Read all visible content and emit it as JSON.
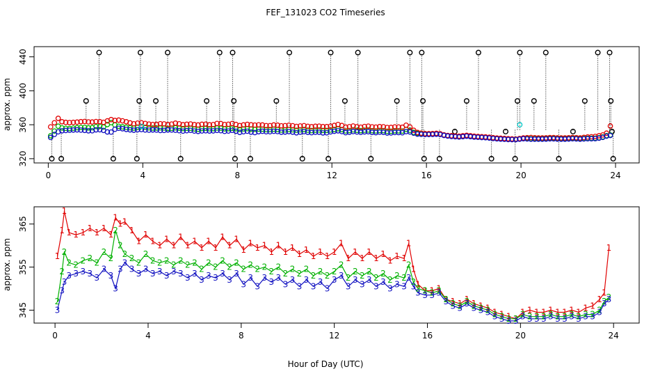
{
  "chart_data": [
    {
      "type": "scatter",
      "title": "FEF_131023  CO2 Timeseries",
      "xlabel": "",
      "ylabel": "approx. ppm",
      "xlim": [
        -0.6,
        25
      ],
      "ylim": [
        315,
        452
      ],
      "x_ticks": [
        0,
        4,
        8,
        12,
        16,
        20,
        24
      ],
      "y_ticks": [
        320,
        360,
        400,
        440
      ],
      "grid": false,
      "marker": "open circle",
      "colors": {
        "1": "#e00000",
        "2": "#00b000",
        "3": "#1010c0",
        "cal": "#00c8c8",
        "spike": "#000000"
      },
      "spikes": [
        {
          "x": 0.15,
          "y": 320
        },
        {
          "x": 0.55,
          "y": 320
        },
        {
          "x": 1.6,
          "y": 388
        },
        {
          "x": 2.15,
          "y": 445
        },
        {
          "x": 2.75,
          "y": 320
        },
        {
          "x": 3.75,
          "y": 320
        },
        {
          "x": 3.85,
          "y": 388
        },
        {
          "x": 3.9,
          "y": 445
        },
        {
          "x": 4.55,
          "y": 388
        },
        {
          "x": 5.05,
          "y": 445
        },
        {
          "x": 5.6,
          "y": 320
        },
        {
          "x": 6.7,
          "y": 388
        },
        {
          "x": 7.25,
          "y": 445
        },
        {
          "x": 7.8,
          "y": 445
        },
        {
          "x": 7.85,
          "y": 388
        },
        {
          "x": 7.9,
          "y": 320
        },
        {
          "x": 8.55,
          "y": 320
        },
        {
          "x": 9.65,
          "y": 388
        },
        {
          "x": 10.2,
          "y": 445
        },
        {
          "x": 10.75,
          "y": 320
        },
        {
          "x": 11.85,
          "y": 320
        },
        {
          "x": 11.95,
          "y": 445
        },
        {
          "x": 12.55,
          "y": 388
        },
        {
          "x": 13.1,
          "y": 445
        },
        {
          "x": 13.65,
          "y": 320
        },
        {
          "x": 14.75,
          "y": 388
        },
        {
          "x": 15.3,
          "y": 445
        },
        {
          "x": 15.8,
          "y": 445
        },
        {
          "x": 15.85,
          "y": 388
        },
        {
          "x": 15.9,
          "y": 320
        },
        {
          "x": 16.55,
          "y": 320
        },
        {
          "x": 17.2,
          "y": 352
        },
        {
          "x": 17.7,
          "y": 388
        },
        {
          "x": 18.2,
          "y": 445
        },
        {
          "x": 18.75,
          "y": 320
        },
        {
          "x": 19.35,
          "y": 352
        },
        {
          "x": 19.75,
          "y": 320
        },
        {
          "x": 19.85,
          "y": 388
        },
        {
          "x": 19.95,
          "y": 445
        },
        {
          "x": 20.55,
          "y": 388
        },
        {
          "x": 21.05,
          "y": 445
        },
        {
          "x": 21.6,
          "y": 320
        },
        {
          "x": 22.2,
          "y": 352
        },
        {
          "x": 22.7,
          "y": 388
        },
        {
          "x": 23.25,
          "y": 445
        },
        {
          "x": 23.75,
          "y": 445
        },
        {
          "x": 23.8,
          "y": 388
        },
        {
          "x": 23.9,
          "y": 320
        },
        {
          "x": 23.85,
          "y": 352
        }
      ]
    },
    {
      "type": "line",
      "title": "",
      "xlabel": "Hour of Day (UTC)",
      "ylabel": "approx. ppm",
      "xlim": [
        -0.9,
        25.1
      ],
      "ylim": [
        342,
        369
      ],
      "x_ticks": [
        0,
        4,
        8,
        12,
        16,
        20,
        24
      ],
      "y_ticks": [
        345,
        355,
        365
      ],
      "grid": false,
      "point_labels": "series name drawn as the marker",
      "series": [
        {
          "name": "1",
          "color": "#e00000",
          "x": [
            0.1,
            0.3,
            0.4,
            0.6,
            0.9,
            1.2,
            1.5,
            1.8,
            2.1,
            2.4,
            2.6,
            2.8,
            3.0,
            3.3,
            3.6,
            3.9,
            4.2,
            4.5,
            4.8,
            5.1,
            5.4,
            5.7,
            6.0,
            6.3,
            6.6,
            6.9,
            7.2,
            7.5,
            7.8,
            8.1,
            8.4,
            8.7,
            9.0,
            9.3,
            9.6,
            9.9,
            10.2,
            10.5,
            10.8,
            11.1,
            11.4,
            11.7,
            12.0,
            12.3,
            12.6,
            12.9,
            13.2,
            13.5,
            13.8,
            14.1,
            14.4,
            14.7,
            15.0,
            15.2,
            15.4,
            15.6,
            15.9,
            16.2,
            16.5,
            16.8,
            17.1,
            17.4,
            17.7,
            18.0,
            18.3,
            18.6,
            18.9,
            19.2,
            19.5,
            19.8,
            20.1,
            20.4,
            20.7,
            21.0,
            21.3,
            21.6,
            21.9,
            22.2,
            22.5,
            22.8,
            23.1,
            23.4,
            23.6,
            23.8
          ],
          "values": [
            357.5,
            363.5,
            368.0,
            363.0,
            362.5,
            363.0,
            364.0,
            363.0,
            364.0,
            362.5,
            366.5,
            365.0,
            365.5,
            363.5,
            361.0,
            362.5,
            361.0,
            360.0,
            361.5,
            360.0,
            362.0,
            360.0,
            361.0,
            359.5,
            361.0,
            359.5,
            362.0,
            360.0,
            361.5,
            359.0,
            360.5,
            359.5,
            360.0,
            358.5,
            360.0,
            358.5,
            359.5,
            358.0,
            359.0,
            357.5,
            358.5,
            357.5,
            358.5,
            360.5,
            357.0,
            358.5,
            357.0,
            358.5,
            357.0,
            358.0,
            356.5,
            357.5,
            357.0,
            360.5,
            354.5,
            351.0,
            349.5,
            349.5,
            350.0,
            347.5,
            347.0,
            346.5,
            347.5,
            346.5,
            346.0,
            345.5,
            344.5,
            344.0,
            343.5,
            343.0,
            344.5,
            345.0,
            344.5,
            344.5,
            345.0,
            344.5,
            344.5,
            345.0,
            344.5,
            345.5,
            346.0,
            347.5,
            349.0,
            359.5
          ]
        },
        {
          "name": "2",
          "color": "#00b000",
          "x": [
            0.1,
            0.3,
            0.4,
            0.6,
            0.9,
            1.2,
            1.5,
            1.8,
            2.1,
            2.4,
            2.6,
            2.8,
            3.0,
            3.3,
            3.6,
            3.9,
            4.2,
            4.5,
            4.8,
            5.1,
            5.4,
            5.7,
            6.0,
            6.3,
            6.6,
            6.9,
            7.2,
            7.5,
            7.8,
            8.1,
            8.4,
            8.7,
            9.0,
            9.3,
            9.6,
            9.9,
            10.2,
            10.5,
            10.8,
            11.1,
            11.4,
            11.7,
            12.0,
            12.3,
            12.6,
            12.9,
            13.2,
            13.5,
            13.8,
            14.1,
            14.4,
            14.7,
            15.0,
            15.2,
            15.4,
            15.6,
            15.9,
            16.2,
            16.5,
            16.8,
            17.1,
            17.4,
            17.7,
            18.0,
            18.3,
            18.6,
            18.9,
            19.2,
            19.5,
            19.8,
            20.1,
            20.4,
            20.7,
            21.0,
            21.3,
            21.6,
            21.9,
            22.2,
            22.5,
            22.8,
            23.1,
            23.4,
            23.6,
            23.8
          ],
          "values": [
            347.0,
            354.0,
            358.5,
            356.0,
            355.5,
            356.5,
            357.0,
            356.0,
            358.5,
            357.0,
            363.5,
            360.0,
            358.0,
            357.0,
            356.0,
            358.0,
            356.5,
            356.0,
            356.5,
            355.5,
            356.5,
            355.5,
            356.0,
            354.5,
            356.0,
            355.0,
            356.5,
            355.0,
            356.0,
            354.5,
            355.5,
            354.5,
            355.0,
            354.0,
            355.0,
            353.5,
            354.5,
            353.5,
            354.5,
            353.0,
            354.0,
            353.0,
            354.0,
            355.5,
            352.5,
            354.0,
            353.0,
            354.0,
            352.5,
            353.5,
            352.0,
            353.0,
            352.5,
            355.5,
            351.5,
            350.0,
            349.5,
            349.0,
            349.5,
            347.5,
            346.5,
            346.0,
            347.0,
            346.0,
            345.5,
            345.0,
            344.0,
            343.5,
            343.0,
            343.0,
            344.0,
            343.5,
            343.5,
            343.5,
            344.0,
            343.5,
            343.5,
            344.0,
            343.5,
            344.0,
            344.0,
            345.0,
            347.0,
            348.0
          ]
        },
        {
          "name": "3",
          "color": "#1010c0",
          "x": [
            0.1,
            0.3,
            0.4,
            0.6,
            0.9,
            1.2,
            1.5,
            1.8,
            2.1,
            2.4,
            2.6,
            2.8,
            3.0,
            3.3,
            3.6,
            3.9,
            4.2,
            4.5,
            4.8,
            5.1,
            5.4,
            5.7,
            6.0,
            6.3,
            6.6,
            6.9,
            7.2,
            7.5,
            7.8,
            8.1,
            8.4,
            8.7,
            9.0,
            9.3,
            9.6,
            9.9,
            10.2,
            10.5,
            10.8,
            11.1,
            11.4,
            11.7,
            12.0,
            12.3,
            12.6,
            12.9,
            13.2,
            13.5,
            13.8,
            14.1,
            14.4,
            14.7,
            15.0,
            15.2,
            15.4,
            15.6,
            15.9,
            16.2,
            16.5,
            16.8,
            17.1,
            17.4,
            17.7,
            18.0,
            18.3,
            18.6,
            18.9,
            19.2,
            19.5,
            19.8,
            20.1,
            20.4,
            20.7,
            21.0,
            21.3,
            21.6,
            21.9,
            22.2,
            22.5,
            22.8,
            23.1,
            23.4,
            23.6,
            23.8
          ],
          "values": [
            345.0,
            349.5,
            351.5,
            353.0,
            353.5,
            354.0,
            353.5,
            352.5,
            354.5,
            353.0,
            350.0,
            354.5,
            356.0,
            354.5,
            353.5,
            354.5,
            353.5,
            354.0,
            353.0,
            354.0,
            353.5,
            352.5,
            353.5,
            352.0,
            353.0,
            352.5,
            353.5,
            352.0,
            353.5,
            351.0,
            352.5,
            350.5,
            352.5,
            351.5,
            352.5,
            351.0,
            352.0,
            350.5,
            352.0,
            350.5,
            351.5,
            350.0,
            352.0,
            353.0,
            350.5,
            352.0,
            351.0,
            352.0,
            350.5,
            351.5,
            350.0,
            351.0,
            350.5,
            352.5,
            350.5,
            349.0,
            348.5,
            348.5,
            349.0,
            347.0,
            346.0,
            345.5,
            346.5,
            345.5,
            345.0,
            344.5,
            343.5,
            343.0,
            342.5,
            342.5,
            343.5,
            343.0,
            343.0,
            343.0,
            343.5,
            343.0,
            343.0,
            343.5,
            343.0,
            343.5,
            343.5,
            344.5,
            346.5,
            347.5
          ]
        }
      ]
    }
  ]
}
